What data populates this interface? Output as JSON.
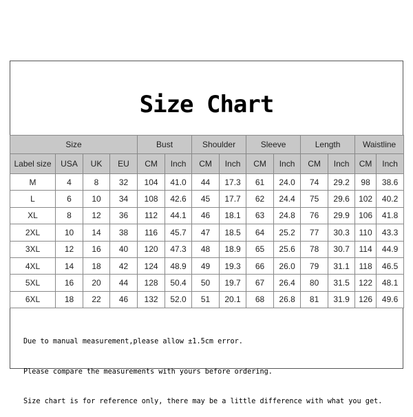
{
  "title": "Size Chart",
  "group_headers": [
    {
      "label": "Size",
      "span": 4
    },
    {
      "label": "Bust",
      "span": 2
    },
    {
      "label": "Shoulder",
      "span": 2
    },
    {
      "label": "Sleeve",
      "span": 2
    },
    {
      "label": "Length",
      "span": 2
    },
    {
      "label": "Waistline",
      "span": 2
    }
  ],
  "sub_headers": [
    "Label size",
    "USA",
    "UK",
    "EU",
    "CM",
    "Inch",
    "CM",
    "Inch",
    "CM",
    "Inch",
    "CM",
    "Inch",
    "CM",
    "Inch"
  ],
  "rows": [
    [
      "M",
      "4",
      "8",
      "32",
      "104",
      "41.0",
      "44",
      "17.3",
      "61",
      "24.0",
      "74",
      "29.2",
      "98",
      "38.6"
    ],
    [
      "L",
      "6",
      "10",
      "34",
      "108",
      "42.6",
      "45",
      "17.7",
      "62",
      "24.4",
      "75",
      "29.6",
      "102",
      "40.2"
    ],
    [
      "XL",
      "8",
      "12",
      "36",
      "112",
      "44.1",
      "46",
      "18.1",
      "63",
      "24.8",
      "76",
      "29.9",
      "106",
      "41.8"
    ],
    [
      "2XL",
      "10",
      "14",
      "38",
      "116",
      "45.7",
      "47",
      "18.5",
      "64",
      "25.2",
      "77",
      "30.3",
      "110",
      "43.3"
    ],
    [
      "3XL",
      "12",
      "16",
      "40",
      "120",
      "47.3",
      "48",
      "18.9",
      "65",
      "25.6",
      "78",
      "30.7",
      "114",
      "44.9"
    ],
    [
      "4XL",
      "14",
      "18",
      "42",
      "124",
      "48.9",
      "49",
      "19.3",
      "66",
      "26.0",
      "79",
      "31.1",
      "118",
      "46.5"
    ],
    [
      "5XL",
      "16",
      "20",
      "44",
      "128",
      "50.4",
      "50",
      "19.7",
      "67",
      "26.4",
      "80",
      "31.5",
      "122",
      "48.1"
    ],
    [
      "6XL",
      "18",
      "22",
      "46",
      "132",
      "52.0",
      "51",
      "20.1",
      "68",
      "26.8",
      "81",
      "31.9",
      "126",
      "49.6"
    ]
  ],
  "notes": [
    "Due to manual measurement,please allow ±1.5cm error.",
    "Please compare the measurements with yours before ordering.",
    "Size chart is for reference only, there may be a little difference with what you get."
  ]
}
